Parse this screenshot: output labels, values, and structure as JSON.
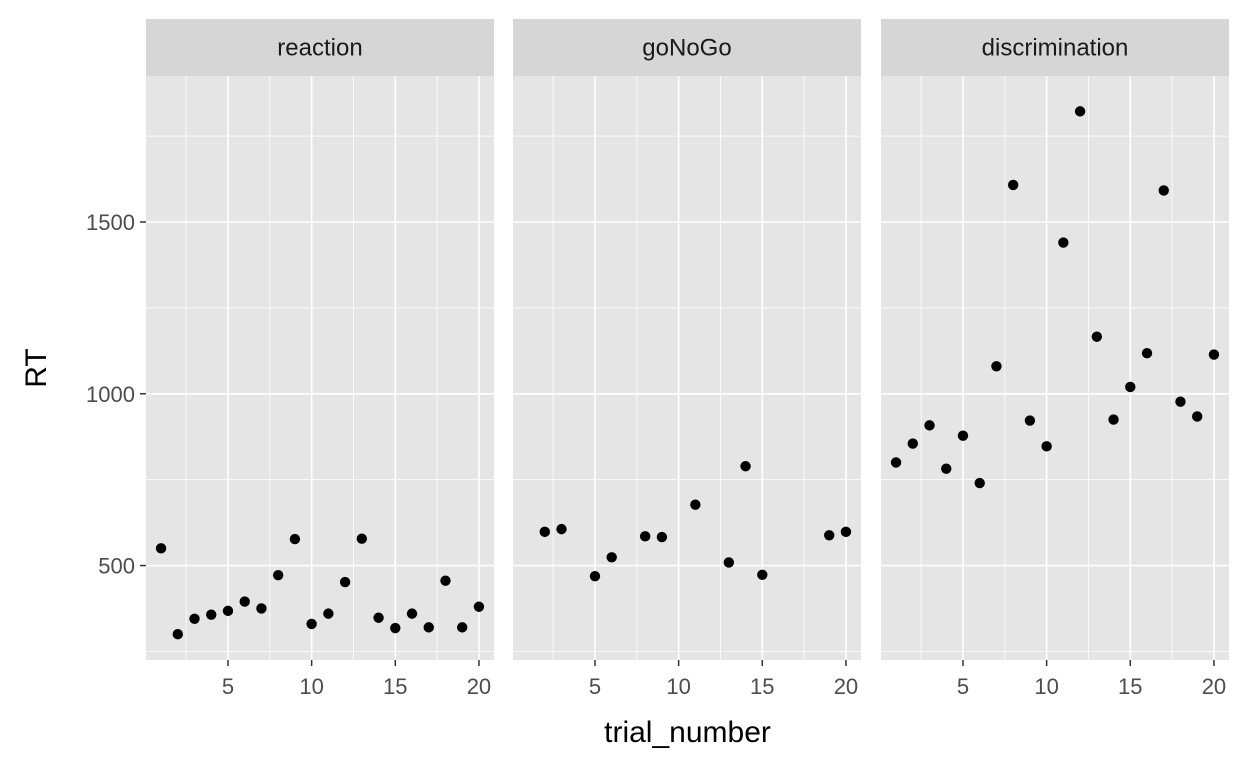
{
  "chart_data": {
    "type": "scatter",
    "xlabel": "trial_number",
    "ylabel": "RT",
    "xlim": [
      0.1,
      20.9
    ],
    "ylim": [
      225,
      1925
    ],
    "x_ticks": [
      5,
      10,
      15,
      20
    ],
    "y_ticks": [
      500,
      1000,
      1500
    ],
    "grid": true,
    "colors": {
      "panel_bg": "#e5e5e5",
      "strip_bg": "#d6d6d6",
      "grid": "#ffffff",
      "point": "#000000"
    },
    "facets": [
      {
        "name": "reaction",
        "x": [
          1,
          2,
          3,
          4,
          5,
          6,
          7,
          8,
          9,
          10,
          11,
          12,
          13,
          14,
          15,
          16,
          17,
          18,
          19,
          20
        ],
        "y": [
          550,
          300,
          345,
          357,
          368,
          395,
          375,
          472,
          577,
          330,
          360,
          452,
          578,
          348,
          318,
          360,
          320,
          456,
          320,
          380
        ]
      },
      {
        "name": "goNoGo",
        "x": [
          2,
          3,
          5,
          6,
          8,
          9,
          11,
          13,
          14,
          15,
          19,
          20
        ],
        "y": [
          598,
          606,
          469,
          524,
          585,
          583,
          677,
          509,
          789,
          473,
          588,
          598
        ]
      },
      {
        "name": "discrimination",
        "x": [
          1,
          2,
          3,
          4,
          5,
          6,
          7,
          8,
          9,
          10,
          11,
          12,
          13,
          14,
          15,
          16,
          17,
          18,
          19,
          20
        ],
        "y": [
          800,
          855,
          908,
          782,
          878,
          740,
          1080,
          1608,
          922,
          847,
          1440,
          1822,
          1166,
          925,
          1020,
          1118,
          1592,
          977,
          934,
          1114
        ]
      }
    ]
  }
}
